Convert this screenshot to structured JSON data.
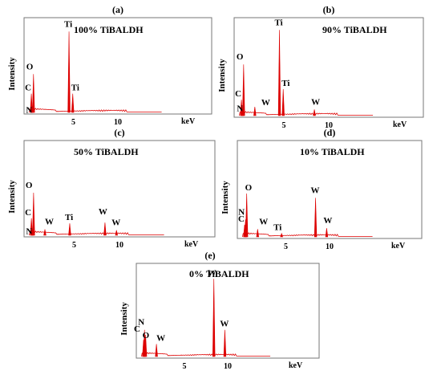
{
  "figure": {
    "panel_labels": [
      "(a)",
      "(b)",
      "(c)",
      "(d)",
      "(e)"
    ]
  },
  "chart_data": [
    {
      "type": "line",
      "panel": "(a)",
      "title": "100% TiBALDH",
      "xlabel": "keV",
      "ylabel": "Intensity",
      "x_ticks": [
        5,
        10
      ],
      "xlim": [
        0,
        20
      ],
      "ylim": [
        0,
        1
      ],
      "grid": false,
      "color": "#dd0000",
      "peaks": [
        {
          "x": 0.28,
          "y": 0.22,
          "label": "C"
        },
        {
          "x": 0.39,
          "y": 0.07,
          "label": "N"
        },
        {
          "x": 0.52,
          "y": 0.45,
          "label": "O"
        },
        {
          "x": 4.51,
          "y": 0.95,
          "label": "Ti"
        },
        {
          "x": 4.93,
          "y": 0.22,
          "label": "Ti"
        }
      ]
    },
    {
      "type": "line",
      "panel": "(b)",
      "title": "90% TiBALDH",
      "xlabel": "keV",
      "ylabel": "Intensity",
      "x_ticks": [
        5,
        10
      ],
      "xlim": [
        0,
        20
      ],
      "ylim": [
        0,
        1
      ],
      "grid": false,
      "color": "#dd0000",
      "peaks": [
        {
          "x": 0.28,
          "y": 0.18,
          "label": "C"
        },
        {
          "x": 0.39,
          "y": 0.07,
          "label": "N"
        },
        {
          "x": 0.52,
          "y": 0.58,
          "label": "O"
        },
        {
          "x": 1.77,
          "y": 0.1,
          "label": "W"
        },
        {
          "x": 4.51,
          "y": 0.97,
          "label": "Ti"
        },
        {
          "x": 4.93,
          "y": 0.3,
          "label": "Ti"
        },
        {
          "x": 8.4,
          "y": 0.07,
          "label": "W"
        }
      ]
    },
    {
      "type": "line",
      "panel": "(c)",
      "title": "50% TiBALDH",
      "xlabel": "keV",
      "ylabel": "Intensity",
      "x_ticks": [
        5,
        10
      ],
      "xlim": [
        0,
        20
      ],
      "ylim": [
        0,
        1
      ],
      "grid": false,
      "color": "#dd0000",
      "peaks": [
        {
          "x": 0.28,
          "y": 0.2,
          "label": "C"
        },
        {
          "x": 0.39,
          "y": 0.07,
          "label": "N"
        },
        {
          "x": 0.52,
          "y": 0.5,
          "label": "O"
        },
        {
          "x": 1.77,
          "y": 0.07,
          "label": "W"
        },
        {
          "x": 4.51,
          "y": 0.14,
          "label": "Ti"
        },
        {
          "x": 8.4,
          "y": 0.15,
          "label": "W"
        },
        {
          "x": 9.67,
          "y": 0.06,
          "label": "W"
        }
      ]
    },
    {
      "type": "line",
      "panel": "(d)",
      "title": "10% TiBALDH",
      "xlabel": "keV",
      "ylabel": "Intensity",
      "x_ticks": [
        5,
        10
      ],
      "xlim": [
        0,
        20
      ],
      "ylim": [
        0,
        1
      ],
      "grid": false,
      "color": "#dd0000",
      "peaks": [
        {
          "x": 0.28,
          "y": 0.14,
          "label": "C"
        },
        {
          "x": 0.39,
          "y": 0.2,
          "label": "N"
        },
        {
          "x": 0.52,
          "y": 0.5,
          "label": "O"
        },
        {
          "x": 1.77,
          "y": 0.09,
          "label": "W"
        },
        {
          "x": 4.51,
          "y": 0.04,
          "label": "Ti"
        },
        {
          "x": 8.4,
          "y": 0.45,
          "label": "W"
        },
        {
          "x": 9.67,
          "y": 0.1,
          "label": "W"
        }
      ]
    },
    {
      "type": "line",
      "panel": "(e)",
      "title": "0% TiBALDH",
      "xlabel": "keV",
      "ylabel": "Intensity",
      "x_ticks": [
        5,
        10
      ],
      "xlim": [
        0,
        20
      ],
      "ylim": [
        0,
        1
      ],
      "grid": false,
      "color": "#dd0000",
      "peaks": [
        {
          "x": 0.28,
          "y": 0.2,
          "label": "C"
        },
        {
          "x": 0.39,
          "y": 0.32,
          "label": "N"
        },
        {
          "x": 0.52,
          "y": 0.26,
          "label": "O"
        },
        {
          "x": 1.77,
          "y": 0.15,
          "label": "W"
        },
        {
          "x": 8.4,
          "y": 0.93,
          "label": "W"
        },
        {
          "x": 9.67,
          "y": 0.32,
          "label": "W"
        }
      ]
    }
  ]
}
